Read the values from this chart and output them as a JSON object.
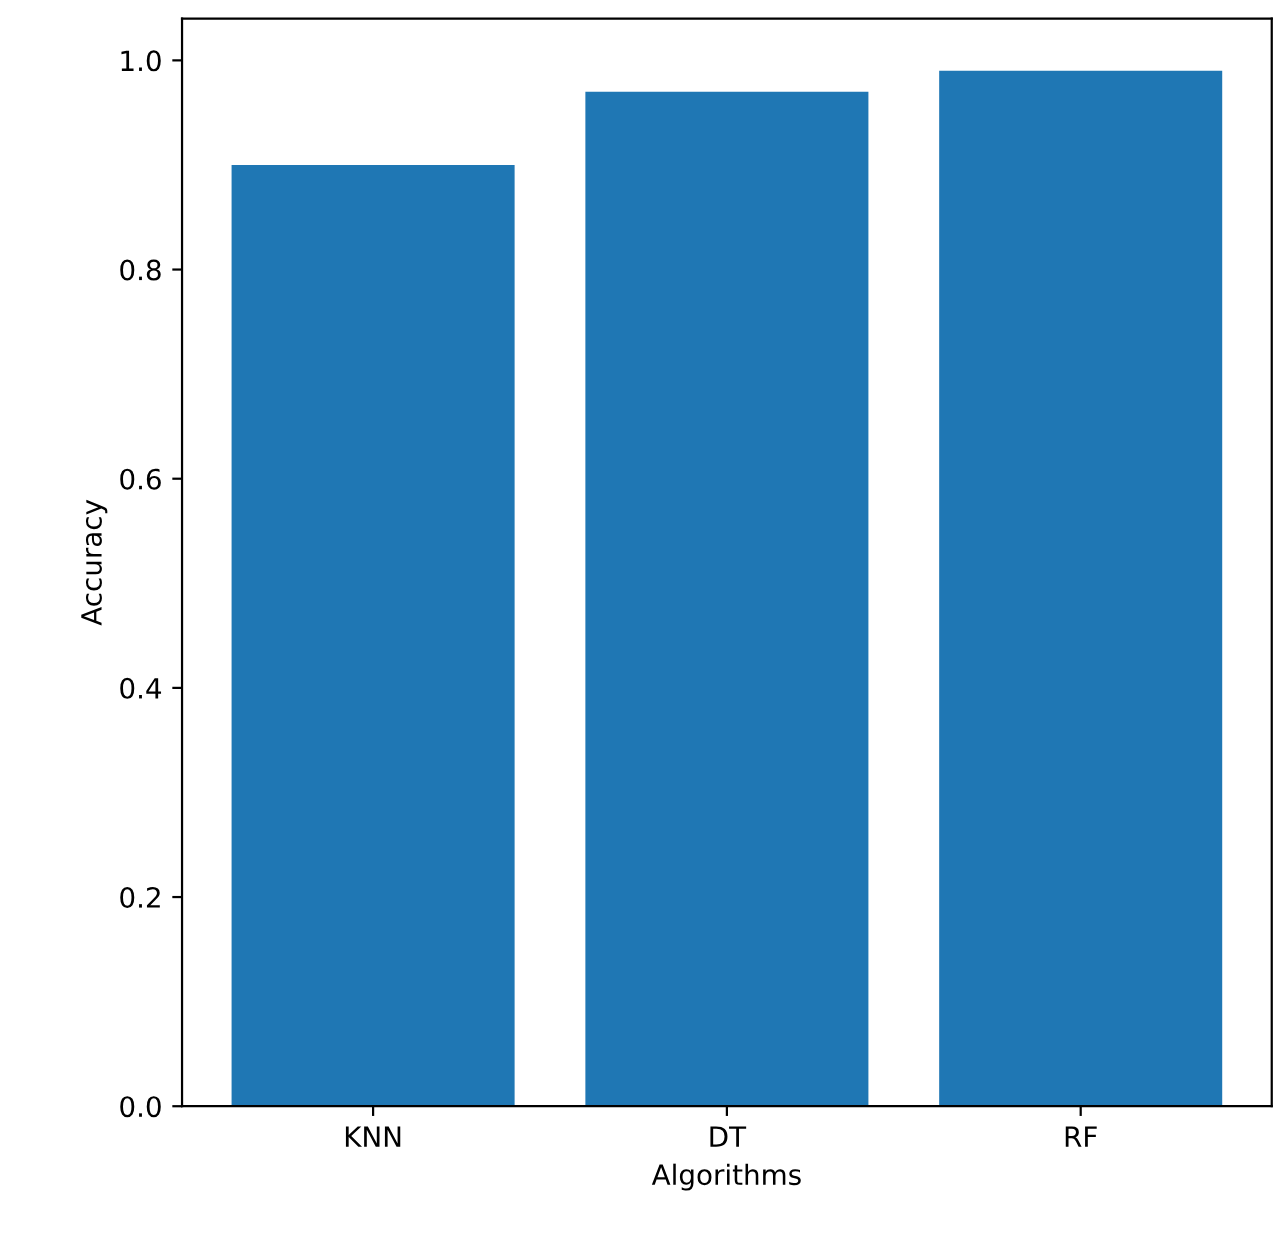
{
  "chart_data": {
    "type": "bar",
    "xlabel": "Algorithms",
    "ylabel": "Accuracy",
    "categories": [
      "KNN",
      "DT",
      "RF"
    ],
    "values": [
      0.9,
      0.97,
      0.99
    ],
    "color": "#1f77b4",
    "ylim": [
      0,
      1.04
    ],
    "yticks": [
      {
        "value": 0,
        "label": "0.0"
      },
      0.2,
      0.4,
      0.6,
      0.8,
      {
        "value": 1,
        "label": "1.0"
      }
    ],
    "grid": false
  }
}
